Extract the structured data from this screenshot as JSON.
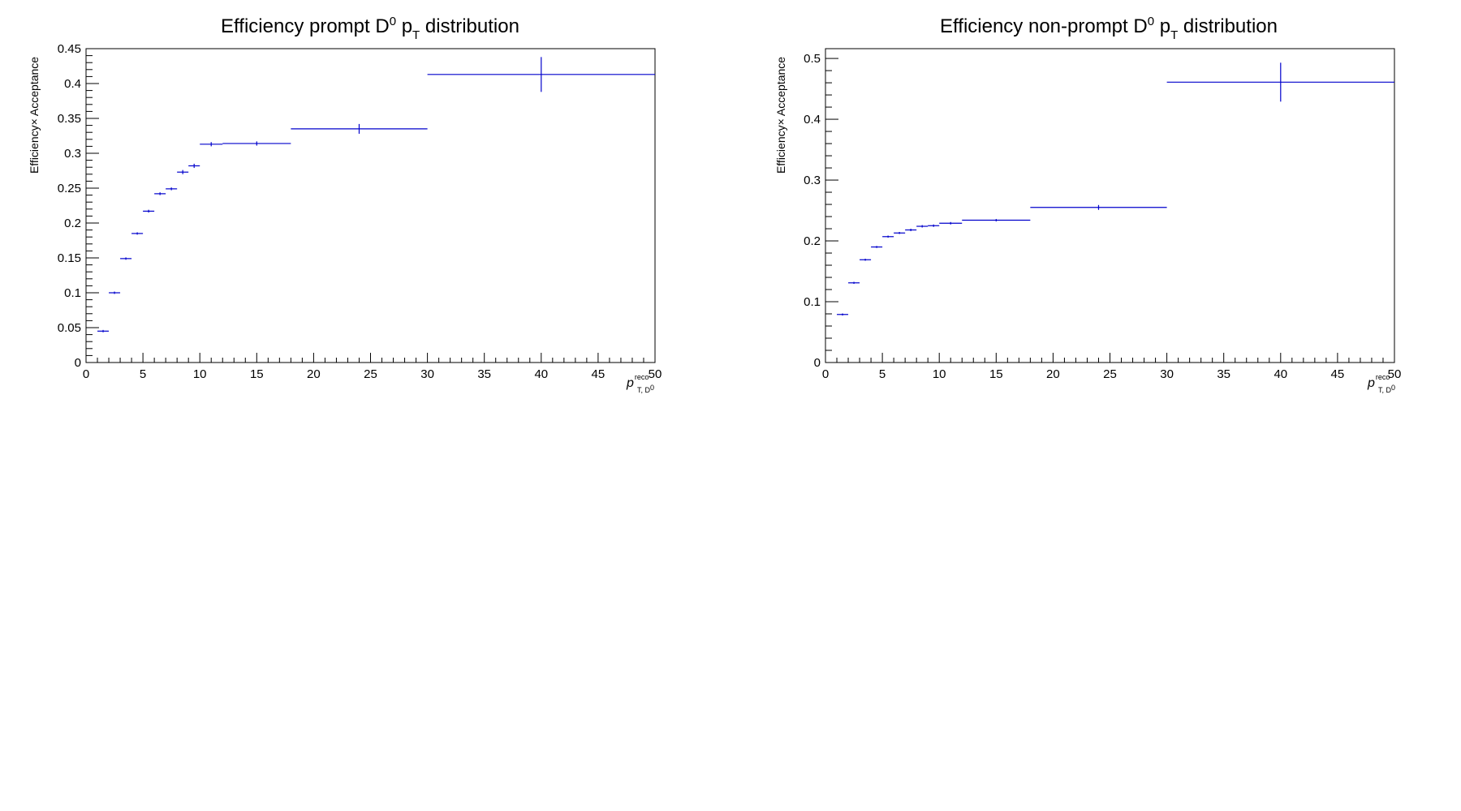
{
  "chart_data": [
    {
      "type": "histogram-errorbars",
      "title": {
        "pre": "Efficiency prompt D",
        "sup": "0",
        "mid": " p",
        "sub": "T",
        "post": " distribution"
      },
      "ylabel": "Efficiency× Acceptance",
      "xlabel": {
        "main": "p",
        "sup": "reco",
        "sub": "T, D",
        "subsup": "0"
      },
      "xlim": [
        0,
        50
      ],
      "ylim": [
        0,
        0.45
      ],
      "x_ticks": [
        "0",
        "5",
        "10",
        "15",
        "20",
        "25",
        "30",
        "35",
        "40",
        "45",
        "50"
      ],
      "y_ticks": [
        "0",
        "0.05",
        "0.1",
        "0.15",
        "0.2",
        "0.25",
        "0.3",
        "0.35",
        "0.4",
        "0.45"
      ],
      "color": "#0000cc",
      "bins": [
        {
          "lo": 1,
          "hi": 2,
          "value": 0.045,
          "err": 0.001
        },
        {
          "lo": 2,
          "hi": 3,
          "value": 0.1,
          "err": 0.001
        },
        {
          "lo": 3,
          "hi": 4,
          "value": 0.149,
          "err": 0.001
        },
        {
          "lo": 4,
          "hi": 5,
          "value": 0.185,
          "err": 0.001
        },
        {
          "lo": 5,
          "hi": 6,
          "value": 0.217,
          "err": 0.002
        },
        {
          "lo": 6,
          "hi": 7,
          "value": 0.242,
          "err": 0.002
        },
        {
          "lo": 7,
          "hi": 8,
          "value": 0.249,
          "err": 0.002
        },
        {
          "lo": 8,
          "hi": 9,
          "value": 0.273,
          "err": 0.003
        },
        {
          "lo": 9,
          "hi": 10,
          "value": 0.282,
          "err": 0.003
        },
        {
          "lo": 10,
          "hi": 12,
          "value": 0.313,
          "err": 0.003
        },
        {
          "lo": 12,
          "hi": 18,
          "value": 0.314,
          "err": 0.003
        },
        {
          "lo": 18,
          "hi": 30,
          "value": 0.335,
          "err": 0.007
        },
        {
          "lo": 30,
          "hi": 50,
          "value": 0.413,
          "err": 0.025
        }
      ]
    },
    {
      "type": "histogram-errorbars",
      "title": {
        "pre": "Efficiency non-prompt D",
        "sup": "0",
        "mid": " p",
        "sub": "T",
        "post": " distribution"
      },
      "ylabel": "Efficiency× Acceptance",
      "xlabel": {
        "main": "p",
        "sup": "reco",
        "sub": "T, D",
        "subsup": "0"
      },
      "xlim": [
        0,
        50
      ],
      "ylim": [
        0,
        0.5161
      ],
      "x_ticks": [
        "0",
        "5",
        "10",
        "15",
        "20",
        "25",
        "30",
        "35",
        "40",
        "45",
        "50"
      ],
      "y_ticks": [
        "0",
        "0.1",
        "0.2",
        "0.3",
        "0.4",
        "0.5"
      ],
      "color": "#0000cc",
      "bins": [
        {
          "lo": 1,
          "hi": 2,
          "value": 0.079,
          "err": 0.001
        },
        {
          "lo": 2,
          "hi": 3,
          "value": 0.131,
          "err": 0.001
        },
        {
          "lo": 3,
          "hi": 4,
          "value": 0.169,
          "err": 0.001
        },
        {
          "lo": 4,
          "hi": 5,
          "value": 0.19,
          "err": 0.001
        },
        {
          "lo": 5,
          "hi": 6,
          "value": 0.207,
          "err": 0.001
        },
        {
          "lo": 6,
          "hi": 7,
          "value": 0.213,
          "err": 0.001
        },
        {
          "lo": 7,
          "hi": 8,
          "value": 0.218,
          "err": 0.002
        },
        {
          "lo": 8,
          "hi": 9,
          "value": 0.224,
          "err": 0.002
        },
        {
          "lo": 9,
          "hi": 10,
          "value": 0.225,
          "err": 0.002
        },
        {
          "lo": 10,
          "hi": 12,
          "value": 0.229,
          "err": 0.002
        },
        {
          "lo": 12,
          "hi": 18,
          "value": 0.234,
          "err": 0.002
        },
        {
          "lo": 18,
          "hi": 30,
          "value": 0.255,
          "err": 0.004
        },
        {
          "lo": 30,
          "hi": 50,
          "value": 0.461,
          "err": 0.032
        }
      ]
    }
  ]
}
